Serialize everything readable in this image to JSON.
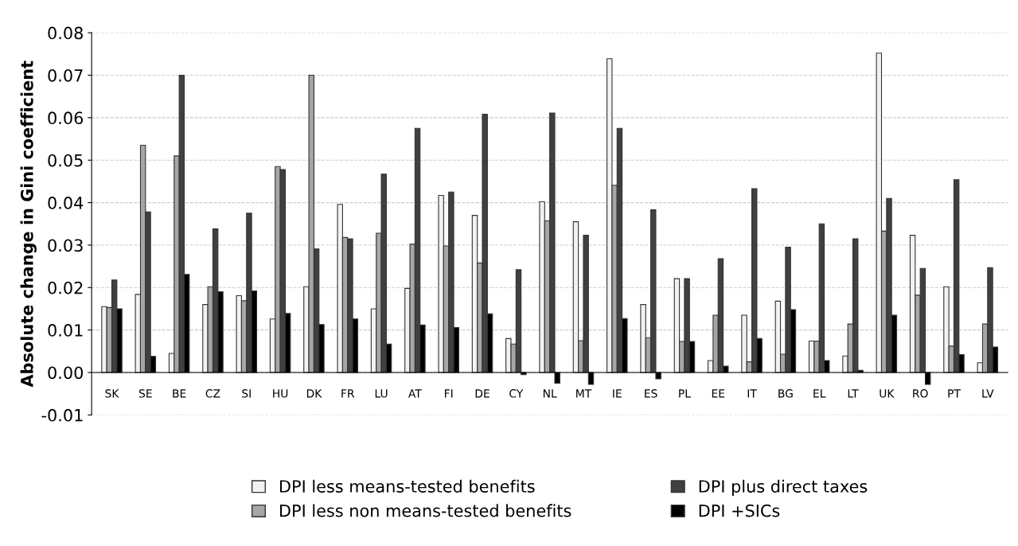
{
  "chart_data": {
    "type": "bar",
    "ylabel": "Absolute change in Gini coefficient",
    "categories": [
      "SK",
      "SE",
      "BE",
      "CZ",
      "SI",
      "HU",
      "DK",
      "FR",
      "LU",
      "AT",
      "FI",
      "DE",
      "CY",
      "NL",
      "MT",
      "IE",
      "ES",
      "PL",
      "EE",
      "IT",
      "BG",
      "EL",
      "LT",
      "UK",
      "RO",
      "PT",
      "LV"
    ],
    "series": [
      {
        "name": "DPI less means-tested benefits",
        "color": "#f2f2f2",
        "values": [
          0.0155,
          0.0184,
          0.0045,
          0.016,
          0.0181,
          0.0126,
          0.0202,
          0.0396,
          0.015,
          0.0198,
          0.0417,
          0.037,
          0.008,
          0.0402,
          0.0355,
          0.0739,
          0.016,
          0.0221,
          0.0028,
          0.0135,
          0.0168,
          0.0074,
          0.0039,
          0.0752,
          0.0323,
          0.0202,
          0.0023
        ]
      },
      {
        "name": "DPI less non means-tested benefits",
        "color": "#a6a6a6",
        "values": [
          0.0153,
          0.0535,
          0.051,
          0.0202,
          0.0169,
          0.0485,
          0.07,
          0.0318,
          0.0328,
          0.0302,
          0.0298,
          0.0258,
          0.0067,
          0.0357,
          0.0075,
          0.0441,
          0.0082,
          0.0073,
          0.0135,
          0.0025,
          0.0043,
          0.0074,
          0.0114,
          0.0333,
          0.0182,
          0.0062,
          0.0114
        ]
      },
      {
        "name": "DPI plus direct taxes",
        "color": "#404040",
        "values": [
          0.0218,
          0.0378,
          0.07,
          0.0338,
          0.0375,
          0.0478,
          0.0291,
          0.0315,
          0.0467,
          0.0575,
          0.0425,
          0.0608,
          0.0242,
          0.0611,
          0.0323,
          0.0575,
          0.0383,
          0.0221,
          0.0268,
          0.0433,
          0.0295,
          0.035,
          0.0315,
          0.041,
          0.0245,
          0.0454,
          0.0247
        ]
      },
      {
        "name": "DPI +SICs",
        "color": "#000000",
        "values": [
          0.015,
          0.0038,
          0.0231,
          0.019,
          0.0192,
          0.0139,
          0.0113,
          0.0126,
          0.0067,
          0.0112,
          0.0106,
          0.0138,
          -0.0005,
          -0.0025,
          -0.0028,
          0.0127,
          -0.0015,
          0.0073,
          0.0015,
          0.008,
          0.0148,
          0.0028,
          0.0005,
          0.0135,
          -0.0028,
          0.0042,
          0.006
        ]
      }
    ],
    "ylim": [
      -0.01,
      0.08
    ],
    "yticks": [
      {
        "value": -0.01,
        "label": "-0.01"
      },
      {
        "value": 0,
        "label": "0.00"
      },
      {
        "value": 0.01,
        "label": "0.01"
      },
      {
        "value": 0.02,
        "label": "0.02"
      },
      {
        "value": 0.03,
        "label": "0.03"
      },
      {
        "value": 0.04,
        "label": "0.04"
      },
      {
        "value": 0.05,
        "label": "0.05"
      },
      {
        "value": 0.06,
        "label": "0.06"
      },
      {
        "value": 0.07,
        "label": "0.07"
      },
      {
        "value": 0.08,
        "label": "0.08"
      }
    ],
    "grid": "y",
    "legend": "bottom"
  }
}
